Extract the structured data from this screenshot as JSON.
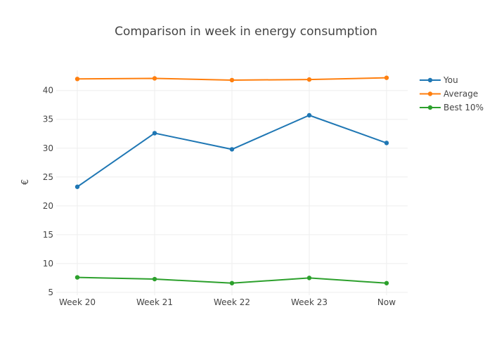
{
  "chart_data": {
    "type": "line",
    "title": "Comparison in week in energy consumption",
    "xlabel": "",
    "ylabel": "€",
    "categories": [
      "Week 20",
      "Week 21",
      "Week 22",
      "Week 23",
      "Now"
    ],
    "ylim": [
      4.5,
      43.5
    ],
    "yticks": [
      5,
      10,
      15,
      20,
      25,
      30,
      35,
      40
    ],
    "grid": true,
    "legend_position": "top-right",
    "series": [
      {
        "name": "You",
        "color": "#1f77b4",
        "values": [
          23.3,
          32.6,
          29.8,
          35.7,
          30.9
        ]
      },
      {
        "name": "Average",
        "color": "#ff7f0e",
        "values": [
          42.0,
          42.1,
          41.8,
          41.9,
          42.2
        ]
      },
      {
        "name": "Best 10%",
        "color": "#2ca02c",
        "values": [
          7.6,
          7.3,
          6.6,
          7.5,
          6.6
        ]
      }
    ]
  }
}
